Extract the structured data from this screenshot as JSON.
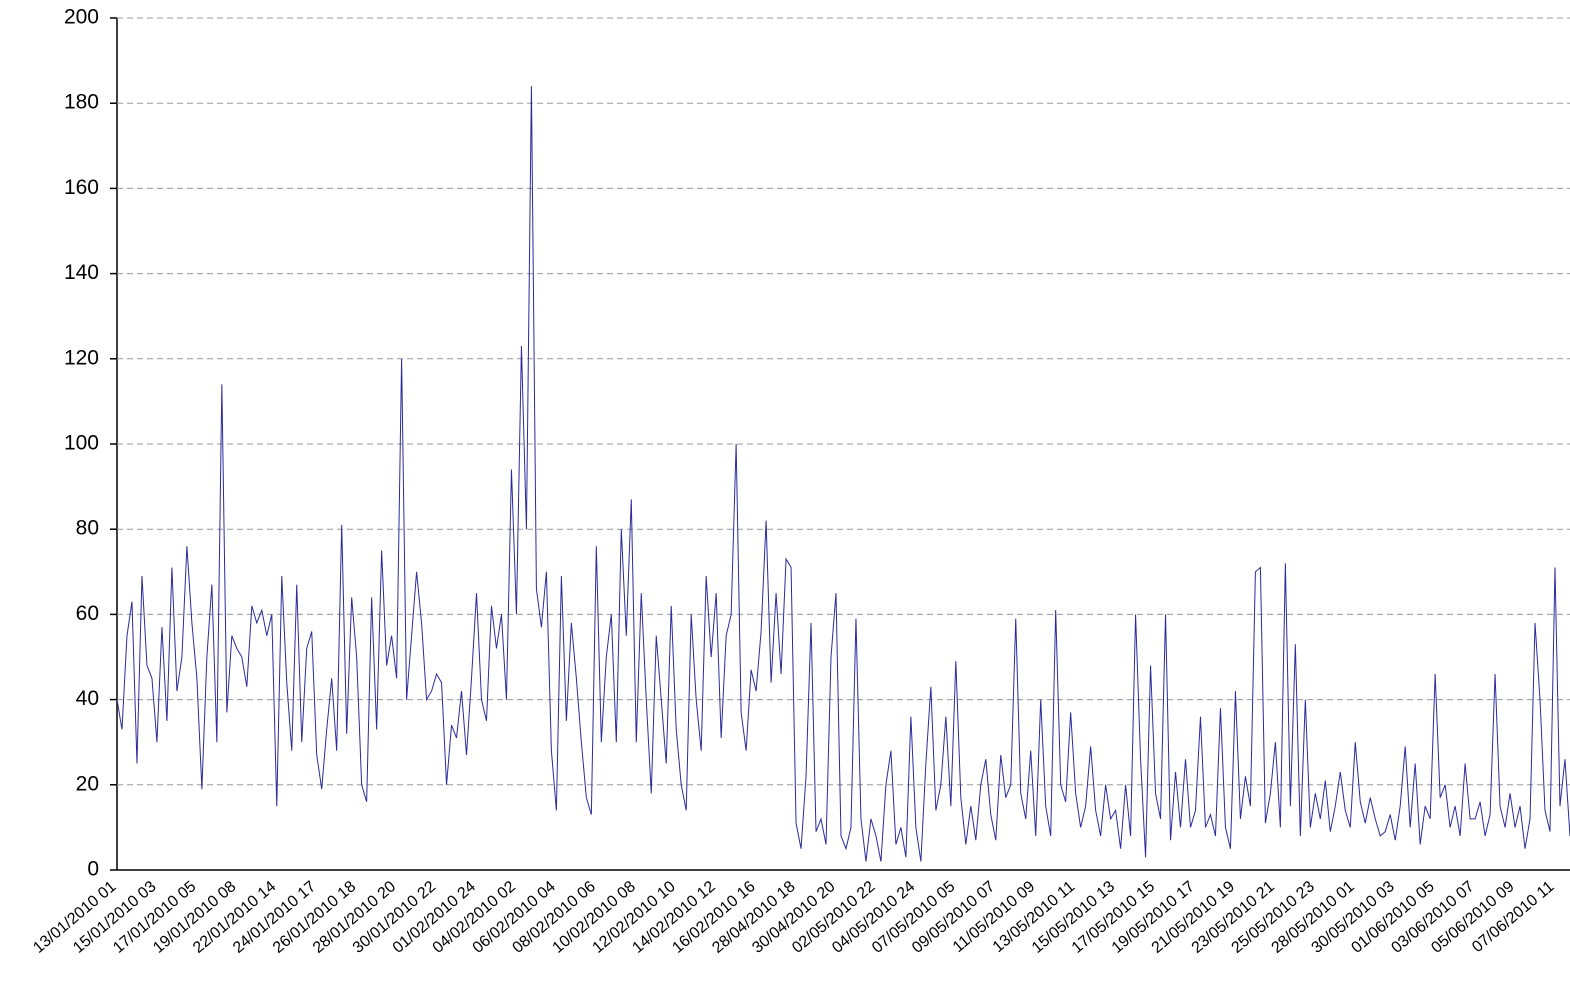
{
  "chart_data": {
    "type": "line",
    "color": "#2b2b9c",
    "ylim": [
      0,
      200
    ],
    "yticks": [
      0,
      20,
      40,
      60,
      80,
      100,
      120,
      140,
      160,
      180,
      200
    ],
    "grid": true,
    "categories": [
      "13/01/2010 01",
      null,
      null,
      null,
      null,
      null,
      null,
      null,
      "15/01/2010 03",
      null,
      null,
      null,
      null,
      null,
      null,
      null,
      "17/01/2010 05",
      null,
      null,
      null,
      null,
      null,
      null,
      null,
      "19/01/2010 08",
      null,
      null,
      null,
      null,
      null,
      null,
      null,
      "22/01/2010 14",
      null,
      null,
      null,
      null,
      null,
      null,
      null,
      "24/01/2010 17",
      null,
      null,
      null,
      null,
      null,
      null,
      null,
      "26/01/2010 18",
      null,
      null,
      null,
      null,
      null,
      null,
      null,
      "28/01/2010 20",
      null,
      null,
      null,
      null,
      null,
      null,
      null,
      "30/01/2010 22",
      null,
      null,
      null,
      null,
      null,
      null,
      null,
      "01/02/2010 24",
      null,
      null,
      null,
      null,
      null,
      null,
      null,
      "04/02/2010 02",
      null,
      null,
      null,
      null,
      null,
      null,
      null,
      "06/02/2010 04",
      null,
      null,
      null,
      null,
      null,
      null,
      null,
      "08/02/2010 06",
      null,
      null,
      null,
      null,
      null,
      null,
      null,
      "10/02/2010 08",
      null,
      null,
      null,
      null,
      null,
      null,
      null,
      "12/02/2010 10",
      null,
      null,
      null,
      null,
      null,
      null,
      null,
      "14/02/2010 12",
      null,
      null,
      null,
      null,
      null,
      null,
      null,
      "16/02/2010 16",
      null,
      null,
      null,
      null,
      null,
      null,
      null,
      "28/04/2010 18",
      null,
      null,
      null,
      null,
      null,
      null,
      null,
      "30/04/2010 20",
      null,
      null,
      null,
      null,
      null,
      null,
      null,
      "02/05/2010 22",
      null,
      null,
      null,
      null,
      null,
      null,
      null,
      "04/05/2010 24",
      null,
      null,
      null,
      null,
      null,
      null,
      null,
      "07/05/2010 05",
      null,
      null,
      null,
      null,
      null,
      null,
      null,
      "09/05/2010 07",
      null,
      null,
      null,
      null,
      null,
      null,
      null,
      "11/05/2010 09",
      null,
      null,
      null,
      null,
      null,
      null,
      null,
      "13/05/2010 11",
      null,
      null,
      null,
      null,
      null,
      null,
      null,
      "15/05/2010 13",
      null,
      null,
      null,
      null,
      null,
      null,
      null,
      "17/05/2010 15",
      null,
      null,
      null,
      null,
      null,
      null,
      null,
      "19/05/2010 17",
      null,
      null,
      null,
      null,
      null,
      null,
      null,
      "21/05/2010 19",
      null,
      null,
      null,
      null,
      null,
      null,
      null,
      "23/05/2010 21",
      null,
      null,
      null,
      null,
      null,
      null,
      null,
      "25/05/2010 23",
      null,
      null,
      null,
      null,
      null,
      null,
      null,
      "28/05/2010 01",
      null,
      null,
      null,
      null,
      null,
      null,
      null,
      "30/05/2010 03",
      null,
      null,
      null,
      null,
      null,
      null,
      null,
      "01/06/2010 05",
      null,
      null,
      null,
      null,
      null,
      null,
      null,
      "03/06/2010 07",
      null,
      null,
      null,
      null,
      null,
      null,
      null,
      "05/06/2010 09",
      null,
      null,
      null,
      null,
      null,
      null,
      null,
      "07/06/2010 11",
      null,
      null,
      null
    ],
    "values": [
      40,
      33,
      55,
      63,
      25,
      69,
      48,
      45,
      30,
      57,
      35,
      71,
      42,
      50,
      76,
      58,
      45,
      19,
      50,
      67,
      30,
      114,
      37,
      55,
      52,
      50,
      43,
      62,
      58,
      61,
      55,
      60,
      15,
      69,
      44,
      28,
      67,
      30,
      52,
      56,
      27,
      19,
      33,
      45,
      28,
      81,
      32,
      64,
      50,
      20,
      16,
      64,
      33,
      75,
      48,
      55,
      45,
      120,
      40,
      55,
      70,
      58,
      40,
      42,
      46,
      44,
      20,
      34,
      31,
      42,
      27,
      45,
      65,
      40,
      35,
      62,
      52,
      60,
      40,
      94,
      60,
      123,
      80,
      184,
      66,
      57,
      70,
      28,
      14,
      69,
      35,
      58,
      45,
      30,
      17,
      13,
      76,
      30,
      50,
      60,
      30,
      80,
      55,
      87,
      30,
      65,
      40,
      18,
      55,
      40,
      25,
      62,
      33,
      20,
      14,
      60,
      40,
      28,
      69,
      50,
      65,
      31,
      55,
      60,
      100,
      37,
      28,
      47,
      42,
      56,
      82,
      44,
      65,
      46,
      73,
      71,
      11,
      5,
      22,
      58,
      9,
      12,
      6,
      50,
      65,
      8,
      5,
      10,
      59,
      12,
      2,
      12,
      8,
      2,
      20,
      28,
      6,
      10,
      3,
      36,
      10,
      2,
      25,
      43,
      14,
      20,
      36,
      15,
      49,
      17,
      6,
      15,
      7,
      20,
      26,
      13,
      7,
      27,
      17,
      20,
      59,
      18,
      12,
      28,
      8,
      40,
      15,
      8,
      61,
      20,
      16,
      37,
      18,
      10,
      15,
      29,
      14,
      8,
      20,
      12,
      14,
      5,
      20,
      8,
      60,
      26,
      3,
      48,
      18,
      12,
      60,
      7,
      23,
      10,
      26,
      10,
      14,
      36,
      10,
      13,
      8,
      38,
      10,
      5,
      42,
      12,
      22,
      15,
      70,
      71,
      11,
      18,
      30,
      10,
      72,
      15,
      53,
      8,
      40,
      10,
      18,
      12,
      21,
      9,
      15,
      23,
      14,
      10,
      30,
      16,
      11,
      17,
      12,
      8,
      9,
      13,
      7,
      15,
      29,
      10,
      25,
      6,
      15,
      12,
      46,
      17,
      20,
      10,
      15,
      8,
      25,
      12,
      12,
      16,
      8,
      13,
      46,
      15,
      10,
      18,
      10,
      15,
      5,
      12,
      58,
      40,
      14,
      9,
      71,
      15,
      26,
      8
    ]
  }
}
